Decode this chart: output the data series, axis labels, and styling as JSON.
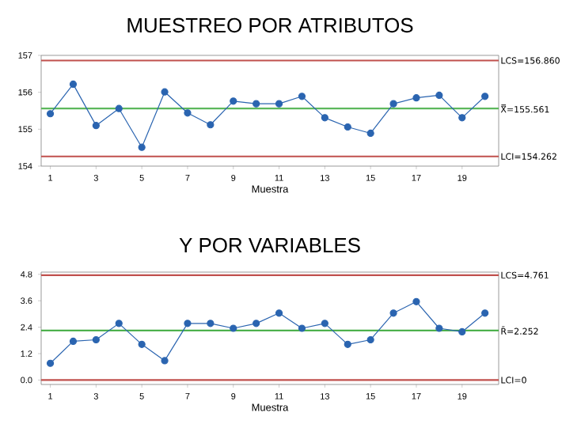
{
  "chart_data": [
    {
      "type": "line",
      "title": "MUESTREO POR ATRIBUTOS",
      "xlabel": "Muestra",
      "x": [
        1,
        2,
        3,
        4,
        5,
        6,
        7,
        8,
        9,
        10,
        11,
        12,
        13,
        14,
        15,
        16,
        17,
        18,
        19,
        20
      ],
      "series": [
        {
          "color": "#2a64b0",
          "values": [
            155.42,
            156.22,
            155.1,
            155.56,
            154.51,
            156.01,
            155.44,
            155.12,
            155.76,
            155.69,
            155.69,
            155.89,
            155.31,
            155.06,
            154.89,
            155.69,
            155.85,
            155.92,
            155.31,
            155.89
          ]
        }
      ],
      "xlim": [
        0.6,
        20.6
      ],
      "xticks": [
        1,
        3,
        5,
        7,
        9,
        11,
        13,
        15,
        17,
        19
      ],
      "ylim": [
        154,
        157
      ],
      "yticks": [
        154,
        155,
        156,
        157
      ],
      "marker": "circle",
      "line_style": "solid",
      "grid": false,
      "ref_lines": [
        {
          "axis": "y",
          "value": 156.86,
          "label": "LCS=156.860",
          "color": "#c0504d"
        },
        {
          "axis": "y",
          "value": 155.561,
          "label": "X̿=155.561",
          "color": "#5cb85c"
        },
        {
          "axis": "y",
          "value": 154.262,
          "label": "LCI=154.262",
          "color": "#c0504d"
        }
      ]
    },
    {
      "type": "line",
      "title": "Y POR VARIABLES",
      "xlabel": "Muestra",
      "x": [
        1,
        2,
        3,
        4,
        5,
        6,
        7,
        8,
        9,
        10,
        11,
        12,
        13,
        14,
        15,
        16,
        17,
        18,
        19,
        20
      ],
      "series": [
        {
          "color": "#2a64b0",
          "values": [
            0.76,
            1.76,
            1.83,
            2.57,
            1.62,
            0.88,
            2.57,
            2.57,
            2.35,
            2.57,
            3.04,
            2.35,
            2.57,
            1.62,
            1.83,
            3.04,
            3.56,
            2.35,
            2.19,
            3.04
          ]
        }
      ],
      "xlim": [
        0.6,
        20.6
      ],
      "xticks": [
        1,
        3,
        5,
        7,
        9,
        11,
        13,
        15,
        17,
        19
      ],
      "ylim": [
        -0.2,
        4.9
      ],
      "yticks": [
        {
          "value": 0,
          "label": "0.0"
        },
        {
          "value": 1.2,
          "label": "1.2"
        },
        {
          "value": 2.4,
          "label": "2.4"
        },
        {
          "value": 3.6,
          "label": "3.6"
        },
        {
          "value": 4.8,
          "label": "4.8"
        }
      ],
      "marker": "circle",
      "line_style": "solid",
      "grid": false,
      "ref_lines": [
        {
          "axis": "y",
          "value": 4.761,
          "label": "LCS=4.761",
          "color": "#c0504d"
        },
        {
          "axis": "y",
          "value": 2.252,
          "label": "R̄=2.252",
          "color": "#3aa83a"
        },
        {
          "axis": "y",
          "value": 0,
          "label": "LCI=0",
          "color": "#c0504d"
        }
      ]
    }
  ]
}
